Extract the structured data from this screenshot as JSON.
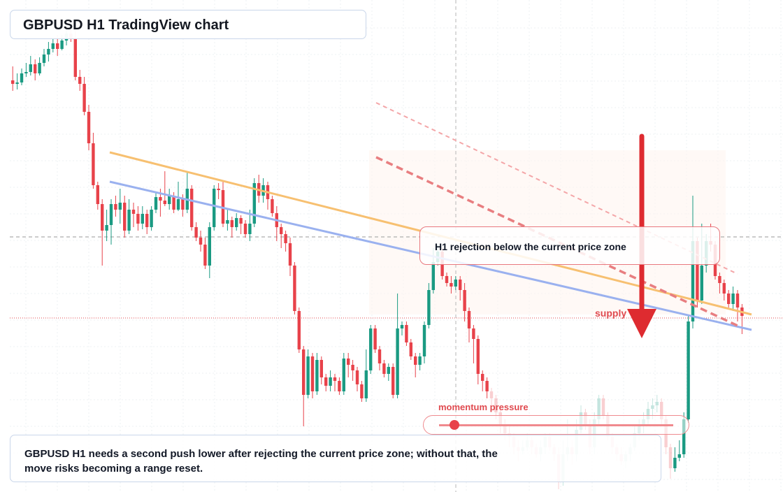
{
  "header": {
    "title": "GBPUSD H1 TradingView chart"
  },
  "callout": {
    "text": "H1 rejection below the current price zone"
  },
  "zone": {
    "label": "supply"
  },
  "momentum": {
    "label": "momentum pressure",
    "level": 0.1
  },
  "summary": {
    "text": "GBPUSD H1 needs a second push lower after rejecting the current price zone; without that, the move risks becoming a range reset."
  },
  "colors": {
    "up": "#1a9a82",
    "down": "#e8424a",
    "trend_orange": "#f7c071",
    "trend_blue": "#9ab1ef",
    "arrow": "#de2b30"
  },
  "chart_data": {
    "type": "candlestick",
    "title": "GBPUSD H1 TradingView chart",
    "ylim": [
      0,
      700
    ],
    "candles": [
      [
        115,
        120,
        95,
        130
      ],
      [
        120,
        118,
        105,
        128
      ],
      [
        118,
        105,
        98,
        122
      ],
      [
        105,
        103,
        90,
        110
      ],
      [
        103,
        92,
        80,
        108
      ],
      [
        92,
        105,
        85,
        115
      ],
      [
        105,
        90,
        82,
        108
      ],
      [
        90,
        78,
        70,
        95
      ],
      [
        78,
        70,
        60,
        88
      ],
      [
        70,
        62,
        55,
        75
      ],
      [
        62,
        70,
        50,
        80
      ],
      [
        70,
        58,
        50,
        72
      ],
      [
        58,
        48,
        40,
        65
      ],
      [
        48,
        55,
        35,
        60
      ],
      [
        55,
        110,
        45,
        115
      ],
      [
        110,
        120,
        100,
        130
      ],
      [
        120,
        160,
        110,
        165
      ],
      [
        160,
        205,
        150,
        215
      ],
      [
        205,
        265,
        190,
        270
      ],
      [
        265,
        292,
        260,
        300
      ],
      [
        292,
        330,
        285,
        380
      ],
      [
        330,
        322,
        300,
        345
      ],
      [
        322,
        292,
        285,
        350
      ],
      [
        292,
        300,
        280,
        310
      ],
      [
        300,
        290,
        270,
        320
      ],
      [
        290,
        330,
        280,
        340
      ],
      [
        330,
        300,
        285,
        335
      ],
      [
        300,
        306,
        290,
        325
      ],
      [
        306,
        320,
        295,
        330
      ],
      [
        320,
        306,
        295,
        328
      ],
      [
        306,
        325,
        300,
        335
      ],
      [
        325,
        300,
        295,
        330
      ],
      [
        300,
        282,
        275,
        305
      ],
      [
        282,
        287,
        270,
        310
      ],
      [
        287,
        292,
        245,
        295
      ],
      [
        292,
        280,
        270,
        300
      ],
      [
        280,
        300,
        275,
        305
      ],
      [
        300,
        285,
        260,
        302
      ],
      [
        285,
        300,
        278,
        310
      ],
      [
        300,
        270,
        245,
        305
      ],
      [
        270,
        325,
        265,
        330
      ],
      [
        325,
        340,
        318,
        345
      ],
      [
        340,
        350,
        330,
        360
      ],
      [
        350,
        380,
        340,
        385
      ],
      [
        380,
        325,
        318,
        398
      ],
      [
        325,
        270,
        265,
        330
      ],
      [
        270,
        272,
        262,
        285
      ],
      [
        272,
        320,
        260,
        325
      ],
      [
        320,
        315,
        300,
        330
      ],
      [
        315,
        325,
        310,
        340
      ],
      [
        325,
        312,
        305,
        330
      ],
      [
        312,
        320,
        308,
        335
      ],
      [
        320,
        335,
        315,
        340
      ],
      [
        335,
        320,
        300,
        345
      ],
      [
        320,
        262,
        255,
        325
      ],
      [
        262,
        280,
        250,
        290
      ],
      [
        280,
        265,
        255,
        290
      ],
      [
        265,
        285,
        260,
        300
      ],
      [
        285,
        305,
        280,
        310
      ],
      [
        305,
        325,
        295,
        345
      ],
      [
        325,
        335,
        320,
        355
      ],
      [
        335,
        348,
        330,
        360
      ],
      [
        348,
        380,
        340,
        395
      ],
      [
        380,
        445,
        375,
        450
      ],
      [
        445,
        500,
        440,
        505
      ],
      [
        500,
        565,
        495,
        610
      ],
      [
        565,
        510,
        500,
        570
      ],
      [
        510,
        560,
        505,
        570
      ],
      [
        560,
        515,
        505,
        565
      ],
      [
        515,
        540,
        510,
        550
      ],
      [
        540,
        552,
        535,
        560
      ],
      [
        552,
        540,
        530,
        560
      ],
      [
        540,
        545,
        535,
        560
      ],
      [
        545,
        560,
        540,
        565
      ],
      [
        560,
        513,
        505,
        565
      ],
      [
        513,
        522,
        505,
        540
      ],
      [
        522,
        530,
        515,
        545
      ],
      [
        530,
        550,
        525,
        560
      ],
      [
        550,
        570,
        545,
        575
      ],
      [
        570,
        530,
        500,
        575
      ],
      [
        530,
        470,
        465,
        535
      ],
      [
        470,
        500,
        465,
        505
      ],
      [
        500,
        520,
        495,
        530
      ],
      [
        520,
        535,
        515,
        540
      ],
      [
        535,
        525,
        520,
        545
      ],
      [
        525,
        565,
        520,
        570
      ],
      [
        565,
        470,
        420,
        570
      ],
      [
        470,
        465,
        460,
        480
      ],
      [
        465,
        490,
        460,
        495
      ],
      [
        490,
        510,
        485,
        515
      ],
      [
        510,
        522,
        505,
        540
      ],
      [
        522,
        510,
        505,
        530
      ],
      [
        510,
        465,
        460,
        520
      ],
      [
        465,
        415,
        405,
        470
      ],
      [
        415,
        375,
        355,
        420
      ],
      [
        375,
        360,
        350,
        380
      ],
      [
        360,
        395,
        355,
        400
      ],
      [
        395,
        405,
        390,
        410
      ],
      [
        405,
        410,
        395,
        420
      ],
      [
        410,
        400,
        395,
        415
      ],
      [
        400,
        415,
        395,
        430
      ],
      [
        415,
        445,
        405,
        460
      ],
      [
        445,
        470,
        440,
        490
      ],
      [
        470,
        485,
        465,
        520
      ],
      [
        485,
        535,
        480,
        550
      ],
      [
        535,
        545,
        530,
        560
      ],
      [
        545,
        560,
        540,
        570
      ],
      [
        560,
        570,
        555,
        580
      ],
      [
        570,
        590,
        565,
        600
      ],
      [
        590,
        610,
        585,
        620
      ],
      [
        610,
        620,
        600,
        630
      ],
      [
        620,
        625,
        610,
        640
      ],
      [
        625,
        640,
        620,
        650
      ],
      [
        640,
        645,
        630,
        660
      ],
      [
        645,
        640,
        630,
        650
      ],
      [
        640,
        630,
        620,
        645
      ],
      [
        630,
        640,
        625,
        650
      ],
      [
        640,
        650,
        635,
        655
      ],
      [
        650,
        640,
        630,
        660
      ],
      [
        640,
        625,
        620,
        650
      ],
      [
        625,
        640,
        620,
        645
      ],
      [
        640,
        650,
        635,
        660
      ],
      [
        650,
        690,
        640,
        700
      ],
      [
        690,
        650,
        630,
        695
      ],
      [
        650,
        640,
        600,
        660
      ],
      [
        640,
        650,
        630,
        665
      ],
      [
        650,
        615,
        600,
        660
      ],
      [
        615,
        590,
        580,
        620
      ],
      [
        590,
        610,
        585,
        615
      ],
      [
        610,
        640,
        600,
        650
      ],
      [
        640,
        600,
        590,
        650
      ],
      [
        600,
        570,
        565,
        610
      ],
      [
        570,
        595,
        565,
        600
      ],
      [
        595,
        625,
        590,
        630
      ],
      [
        625,
        640,
        620,
        650
      ],
      [
        640,
        650,
        635,
        660
      ],
      [
        650,
        660,
        640,
        665
      ],
      [
        660,
        650,
        645,
        670
      ],
      [
        650,
        640,
        635,
        660
      ],
      [
        640,
        620,
        610,
        645
      ],
      [
        620,
        610,
        600,
        630
      ],
      [
        610,
        600,
        590,
        620
      ],
      [
        600,
        585,
        575,
        610
      ],
      [
        585,
        580,
        570,
        600
      ],
      [
        580,
        575,
        565,
        590
      ],
      [
        575,
        600,
        570,
        610
      ],
      [
        600,
        640,
        595,
        650
      ],
      [
        640,
        670,
        635,
        685
      ],
      [
        670,
        655,
        640,
        675
      ],
      [
        655,
        650,
        630,
        660
      ],
      [
        650,
        600,
        590,
        655
      ],
      [
        600,
        460,
        450,
        605
      ],
      [
        460,
        345,
        280,
        470
      ],
      [
        345,
        430,
        340,
        440
      ],
      [
        430,
        380,
        320,
        435
      ],
      [
        380,
        345,
        335,
        390
      ],
      [
        345,
        350,
        320,
        360
      ],
      [
        350,
        395,
        345,
        400
      ],
      [
        395,
        405,
        390,
        420
      ],
      [
        405,
        420,
        400,
        430
      ],
      [
        420,
        435,
        415,
        440
      ],
      [
        435,
        420,
        410,
        445
      ],
      [
        420,
        440,
        415,
        460
      ],
      [
        440,
        452,
        435,
        478
      ]
    ]
  }
}
